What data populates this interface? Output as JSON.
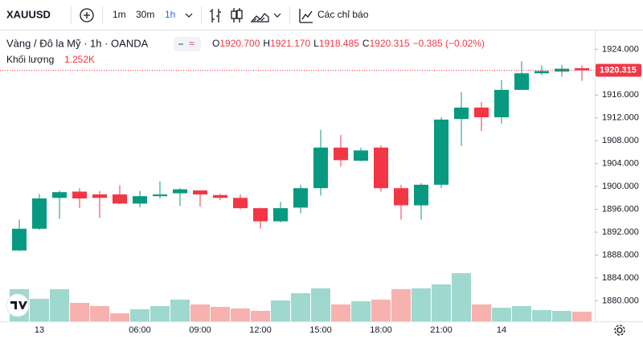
{
  "toolbar": {
    "symbol": "XAUUSD",
    "intervals": [
      "1m",
      "30m",
      "1h"
    ],
    "indicators": "Các chỉ báo"
  },
  "chart_data": {
    "type": "candlestick",
    "title": "Vàng / Đô la Mỹ · 1h · OANDA",
    "ohlc_header": [
      {
        "key": "O",
        "value": "1920.700"
      },
      {
        "key": "H",
        "value": "1921.170"
      },
      {
        "key": "L",
        "value": "1918.485"
      },
      {
        "key": "C",
        "value": "1920.315"
      }
    ],
    "change_label": "−0.385 (−0.02%)",
    "volume_title": "Khối lượng",
    "volume_last_label": "1.252K",
    "last_price_label": "1920.315",
    "up_color": "#089981",
    "down_color": "#f23645",
    "up_volume_color": "#9fd8cf",
    "down_volume_color": "#f7b1ae",
    "categories": [
      null,
      "13",
      null,
      null,
      null,
      null,
      "06:00",
      null,
      null,
      "09:00",
      null,
      null,
      "12:00",
      null,
      null,
      "15:00",
      null,
      null,
      "18:00",
      null,
      null,
      "21:00",
      null,
      null,
      "14",
      null,
      null,
      null,
      null
    ],
    "open": [
      1888.8,
      1892.6,
      1898.0,
      1899.1,
      1898.6,
      1898.6,
      1897.0,
      1898.3,
      1898.8,
      1899.3,
      1898.5,
      1898.0,
      1896.2,
      1893.9,
      1896.3,
      1899.7,
      1906.8,
      1904.5,
      1906.8,
      1899.7,
      1896.7,
      1900.3,
      1911.8,
      1913.8,
      1912.1,
      1916.9,
      1919.8,
      1920.1,
      1920.7
    ],
    "high": [
      1894.2,
      1898.7,
      1899.3,
      1899.7,
      1899.2,
      1900.2,
      1899.2,
      1900.9,
      1899.7,
      1899.3,
      1898.7,
      1898.6,
      1896.3,
      1897.3,
      1900.3,
      1909.9,
      1909.0,
      1906.8,
      1907.2,
      1900.3,
      1900.6,
      1912.1,
      1916.5,
      1914.8,
      1918.6,
      1921.9,
      1921.2,
      1921.3,
      1921.17
    ],
    "low": [
      1888.7,
      1892.4,
      1894.3,
      1896.2,
      1894.5,
      1896.9,
      1896.3,
      1897.9,
      1896.6,
      1896.5,
      1897.6,
      1896.0,
      1892.6,
      1893.7,
      1895.3,
      1898.4,
      1903.5,
      1904.4,
      1899.1,
      1894.2,
      1894.2,
      1899.7,
      1907.1,
      1909.7,
      1911.0,
      1916.9,
      1919.5,
      1919.2,
      1918.485
    ],
    "close": [
      1892.6,
      1897.9,
      1899.0,
      1897.9,
      1898.0,
      1897.0,
      1898.3,
      1898.6,
      1899.5,
      1898.6,
      1898.0,
      1896.2,
      1893.9,
      1896.2,
      1899.7,
      1906.8,
      1904.6,
      1906.3,
      1899.7,
      1896.7,
      1900.3,
      1911.7,
      1913.8,
      1912.1,
      1916.9,
      1919.8,
      1920.2,
      1920.6,
      1920.315
    ],
    "volume": [
      4.18,
      2.92,
      4.18,
      2.4,
      1.98,
      1.04,
      1.57,
      1.98,
      2.82,
      2.19,
      1.88,
      1.67,
      1.36,
      2.71,
      3.65,
      4.28,
      2.19,
      2.61,
      2.82,
      4.18,
      4.28,
      4.8,
      6.26,
      2.19,
      1.77,
      1.98,
      1.46,
      1.36,
      1.252
    ],
    "ylim": [
      1876.4,
      1927.0
    ],
    "yticks": [
      {
        "value": 1880,
        "label": "1880.000"
      },
      {
        "value": 1884,
        "label": "1884.000"
      },
      {
        "value": 1888,
        "label": "1888.000"
      },
      {
        "value": 1892,
        "label": "1892.000"
      },
      {
        "value": 1896,
        "label": "1896.000"
      },
      {
        "value": 1900,
        "label": "1900.000"
      },
      {
        "value": 1904,
        "label": "1904.000"
      },
      {
        "value": 1908,
        "label": "1908.000"
      },
      {
        "value": 1912,
        "label": "1912.000"
      },
      {
        "value": 1916,
        "label": "1916.000"
      },
      {
        "value": 1920,
        "label": "1920.000"
      },
      {
        "value": 1924,
        "label": "1924.000"
      }
    ],
    "grid": false
  }
}
